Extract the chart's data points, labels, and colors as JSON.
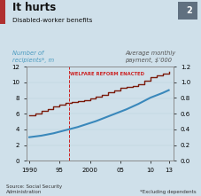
{
  "title": "It hurts",
  "subtitle": "Disabled-worker benefits",
  "left_ylabel": "Number of\nrecipients*, m",
  "right_ylabel": "Average monthly\npayment, $’000",
  "source": "Source: Social Security\nAdministration",
  "footnote": "*Excluding dependents",
  "welfare_reform_x": 1996.5,
  "welfare_reform_label": "WELFARE REFORM ENACTED",
  "background_color": "#cfe0ea",
  "plot_bg_color": "#cfe0ea",
  "box_number": "2",
  "xlim": [
    1989.5,
    2013.8
  ],
  "ylim_left": [
    0,
    12
  ],
  "ylim_right": [
    0,
    1.2
  ],
  "xtick_labels": [
    "1990",
    "95",
    "2000",
    "05",
    "10",
    "13"
  ],
  "xtick_positions": [
    1990,
    1995,
    2000,
    2005,
    2010,
    2013
  ],
  "red_line_color": "#7a1a0a",
  "blue_line_color": "#3a88bb",
  "label_color_left": "#4a9abf",
  "label_color_right": "#555555",
  "red_data_x": [
    1990,
    1991,
    1992,
    1993,
    1994,
    1995,
    1996,
    1997,
    1998,
    1999,
    2000,
    2001,
    2002,
    2003,
    2004,
    2005,
    2006,
    2007,
    2008,
    2009,
    2010,
    2011,
    2012,
    2013
  ],
  "red_data_y": [
    5.8,
    6.05,
    6.35,
    6.6,
    6.9,
    7.15,
    7.4,
    7.5,
    7.6,
    7.7,
    7.9,
    8.15,
    8.45,
    8.75,
    9.0,
    9.25,
    9.45,
    9.55,
    9.75,
    10.2,
    10.65,
    10.9,
    11.1,
    11.35
  ],
  "blue_data_x": [
    1990,
    1991,
    1992,
    1993,
    1994,
    1995,
    1996,
    1997,
    1998,
    1999,
    2000,
    2001,
    2002,
    2003,
    2004,
    2005,
    2006,
    2007,
    2008,
    2009,
    2010,
    2011,
    2012,
    2013
  ],
  "blue_data_y": [
    0.3,
    0.31,
    0.32,
    0.335,
    0.35,
    0.37,
    0.39,
    0.41,
    0.43,
    0.455,
    0.48,
    0.505,
    0.535,
    0.565,
    0.595,
    0.625,
    0.655,
    0.69,
    0.725,
    0.765,
    0.805,
    0.835,
    0.865,
    0.9
  ],
  "title_bar_color": "#b03030"
}
